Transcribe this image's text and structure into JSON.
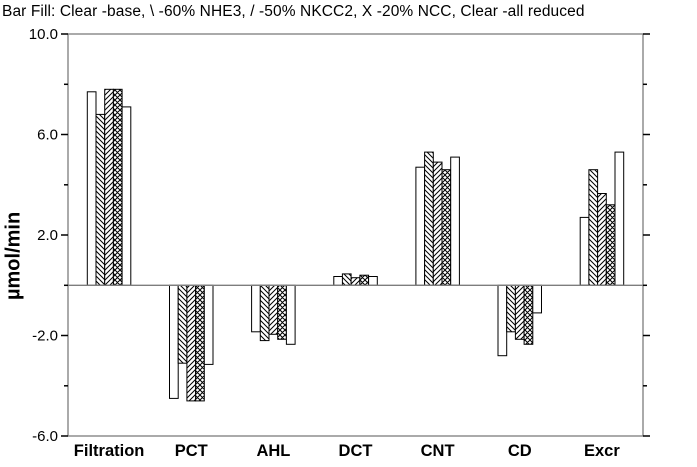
{
  "title": "Bar Fill: Clear -base, \\ -60% NHE3, / -50% NKCC2, X -20% NCC, Clear -all reduced",
  "chart_data": {
    "type": "bar",
    "title": "Bar Fill: Clear -base, \\ -60% NHE3, / -50% NKCC2, X -20% NCC, Clear -all reduced",
    "categories": [
      "Filtration",
      "PCT",
      "AHL",
      "DCT",
      "CNT",
      "CD",
      "Excr"
    ],
    "series": [
      {
        "name": "base",
        "fill": "clear",
        "values": [
          7.7,
          -4.5,
          -1.85,
          0.35,
          4.7,
          -2.8,
          2.7
        ]
      },
      {
        "name": "-60% NHE3",
        "fill": "backslash",
        "values": [
          6.8,
          -3.1,
          -2.2,
          0.45,
          5.3,
          -1.85,
          4.6
        ]
      },
      {
        "name": "-50% NKCC2",
        "fill": "slash",
        "values": [
          7.8,
          -4.6,
          -1.95,
          0.3,
          4.9,
          -2.15,
          3.65
        ]
      },
      {
        "name": "-20% NCC",
        "fill": "cross",
        "values": [
          7.8,
          -4.6,
          -2.15,
          0.4,
          4.6,
          -2.35,
          3.2
        ]
      },
      {
        "name": "all reduced",
        "fill": "clear",
        "values": [
          7.1,
          -3.15,
          -2.35,
          0.35,
          5.1,
          -1.1,
          5.3
        ]
      }
    ],
    "ylabel": "µmol/min",
    "ylim": [
      -6,
      10
    ],
    "yticks_major": [
      10,
      6,
      2,
      -2,
      -6
    ],
    "ytick_labels": [
      "10.0",
      "6.0",
      "2.0",
      "-2.0",
      "-6.0"
    ],
    "yticks_minor": [
      8,
      4,
      0,
      -4
    ],
    "grid": "off",
    "legend_position": "title-line",
    "colors": {
      "bar_outline": "#000000",
      "frame": "#7d7d7d",
      "zero_line": "#7d7d7d",
      "tick": "#000000",
      "bar_fill": "#ffffff"
    }
  }
}
